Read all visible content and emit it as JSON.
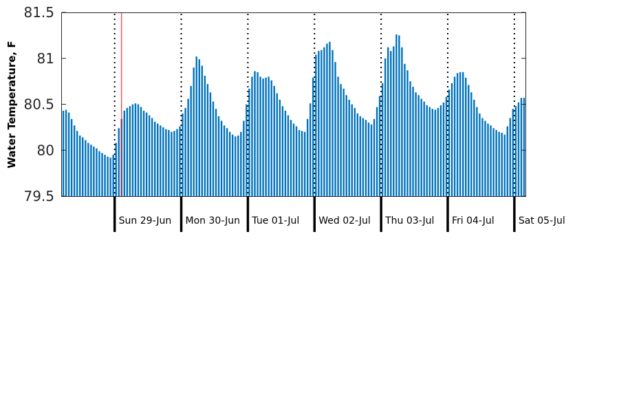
{
  "chart_data": {
    "type": "bar",
    "title": "",
    "xlabel": "",
    "ylabel": "Water Temperature, F",
    "ylim": [
      79.5,
      81.5
    ],
    "yticks": [
      79.5,
      80,
      80.5,
      81,
      81.5
    ],
    "ytick_labels": [
      "79.5",
      "80",
      "80.5",
      "81",
      "81.5"
    ],
    "grid": false,
    "bar_color": "#0072BD",
    "current_time_marker_color": "#FF0000",
    "day_labels": [
      "Sun 29-Jun",
      "Mon 30-Jun",
      "Tue 01-Jul",
      "Wed 02-Jul",
      "Thu 03-Jul",
      "Fri 04-Jul",
      "Sat 05-Jul"
    ],
    "bars_per_day": 24,
    "bars_before_first_day": 19,
    "current_time_bar_index": 22,
    "values": [
      80.43,
      80.44,
      80.41,
      80.34,
      80.27,
      80.21,
      80.16,
      80.14,
      80.11,
      80.08,
      80.06,
      80.04,
      80.02,
      79.99,
      79.97,
      79.95,
      79.93,
      79.92,
      79.95,
      80.08,
      80.24,
      80.34,
      80.43,
      80.46,
      80.48,
      80.5,
      80.51,
      80.5,
      80.47,
      80.43,
      80.41,
      80.38,
      80.35,
      80.31,
      80.29,
      80.27,
      80.25,
      80.23,
      80.22,
      80.2,
      80.21,
      80.23,
      80.26,
      80.4,
      80.46,
      80.56,
      80.7,
      80.9,
      81.02,
      80.99,
      80.92,
      80.81,
      80.72,
      80.63,
      80.53,
      80.45,
      80.37,
      80.32,
      80.27,
      80.24,
      80.2,
      80.17,
      80.15,
      80.16,
      80.2,
      80.32,
      80.5,
      80.67,
      80.8,
      80.86,
      80.85,
      80.8,
      80.78,
      80.79,
      80.8,
      80.76,
      80.7,
      80.62,
      80.55,
      80.48,
      80.43,
      80.38,
      80.33,
      80.29,
      80.26,
      80.22,
      80.21,
      80.2,
      80.34,
      80.51,
      80.79,
      81.04,
      81.08,
      81.09,
      81.12,
      81.16,
      81.18,
      81.09,
      80.96,
      80.8,
      80.72,
      80.67,
      80.6,
      80.55,
      80.5,
      80.46,
      80.4,
      80.37,
      80.35,
      80.33,
      80.3,
      80.28,
      80.34,
      80.47,
      80.59,
      80.73,
      81.0,
      81.12,
      81.08,
      81.13,
      81.26,
      81.25,
      81.12,
      80.94,
      80.87,
      80.75,
      80.69,
      80.63,
      80.6,
      80.56,
      80.53,
      80.49,
      80.47,
      80.45,
      80.44,
      80.46,
      80.49,
      80.52,
      80.58,
      80.66,
      80.73,
      80.8,
      80.84,
      80.85,
      80.85,
      80.79,
      80.71,
      80.63,
      80.55,
      80.47,
      80.4,
      80.35,
      80.32,
      80.29,
      80.27,
      80.24,
      80.22,
      80.2,
      80.19,
      80.17,
      80.26,
      80.35,
      80.45,
      80.48,
      80.52,
      80.57,
      80.57
    ]
  }
}
